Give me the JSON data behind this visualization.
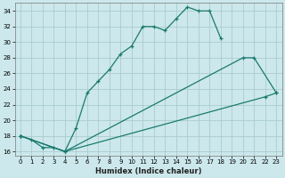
{
  "title": "",
  "xlabel": "Humidex (Indice chaleur)",
  "bg_color": "#cce8ec",
  "grid_color": "#aacccc",
  "line_color": "#1a7a6e",
  "xlim": [
    -0.5,
    23.5
  ],
  "ylim": [
    15.5,
    35.0
  ],
  "xticks": [
    0,
    1,
    2,
    3,
    4,
    5,
    6,
    7,
    8,
    9,
    10,
    11,
    12,
    13,
    14,
    15,
    16,
    17,
    18,
    19,
    20,
    21,
    22,
    23
  ],
  "yticks": [
    16,
    18,
    20,
    22,
    24,
    26,
    28,
    30,
    32,
    34
  ],
  "line1_x": [
    0,
    1,
    2,
    3,
    4,
    5,
    6,
    7,
    8,
    9,
    10,
    11,
    12,
    13,
    14,
    15,
    16,
    17,
    18
  ],
  "line1_y": [
    18.0,
    17.5,
    16.5,
    16.5,
    16.0,
    19.0,
    23.5,
    25.0,
    26.5,
    28.5,
    29.5,
    32.0,
    32.0,
    31.5,
    33.0,
    34.5,
    34.0,
    34.0,
    30.5
  ],
  "line2_x": [
    0,
    4,
    20,
    21,
    23
  ],
  "line2_y": [
    18.0,
    16.0,
    28.0,
    28.0,
    23.5
  ],
  "line3_x": [
    0,
    4,
    22,
    23
  ],
  "line3_y": [
    18.0,
    16.0,
    23.0,
    23.5
  ]
}
